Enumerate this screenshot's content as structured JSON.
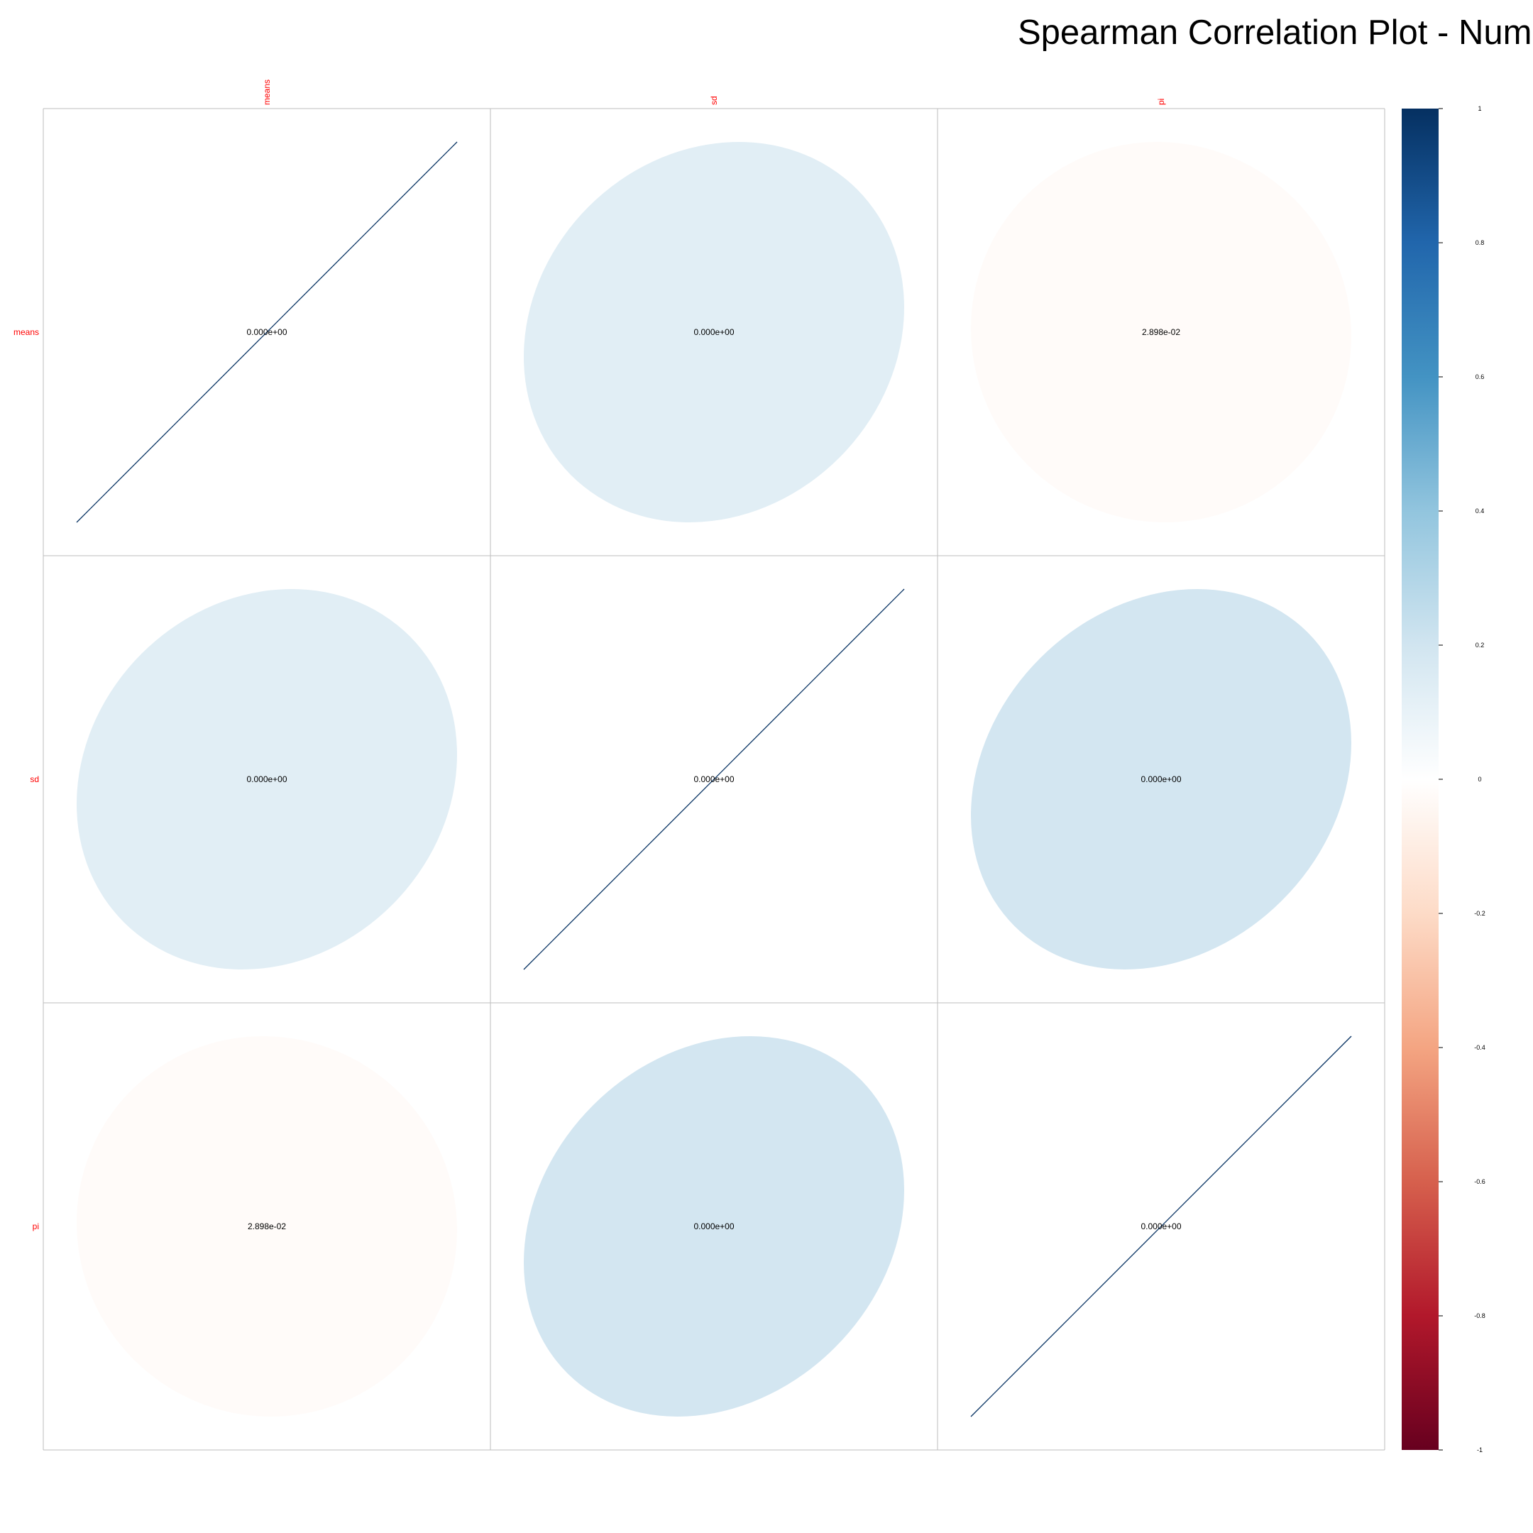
{
  "chart_data": {
    "type": "heatmap",
    "title": "Spearman Correlation Plot - Numb",
    "method": "ellipse",
    "variables": [
      "means",
      "sd",
      "pi"
    ],
    "matrix": [
      [
        1.0,
        0.13,
        -0.02
      ],
      [
        0.13,
        1.0,
        0.19
      ],
      [
        -0.02,
        0.19,
        1.0
      ]
    ],
    "cell_labels": [
      [
        "0.000e+00",
        "0.000e+00",
        "2.898e-02"
      ],
      [
        "0.000e+00",
        "0.000e+00",
        "0.000e+00"
      ],
      [
        "2.898e-02",
        "0.000e+00",
        "0.000e+00"
      ]
    ],
    "colorbar": {
      "range": [
        -1,
        1
      ],
      "ticks": [
        "1",
        "0.8",
        "0.6",
        "0.4",
        "0.2",
        "0",
        "-0.2",
        "-0.4",
        "-0.6",
        "-0.8",
        "-1"
      ],
      "colors": [
        "#67001F",
        "#B2182B",
        "#D6604D",
        "#F4A582",
        "#FDDBC7",
        "#FFFFFF",
        "#D1E5F0",
        "#92C5DE",
        "#4393C3",
        "#2166AC",
        "#053061"
      ]
    },
    "label_color": "#FF0000",
    "grid_color": "#BEBEBE",
    "grid": true,
    "legend_position": "right"
  }
}
